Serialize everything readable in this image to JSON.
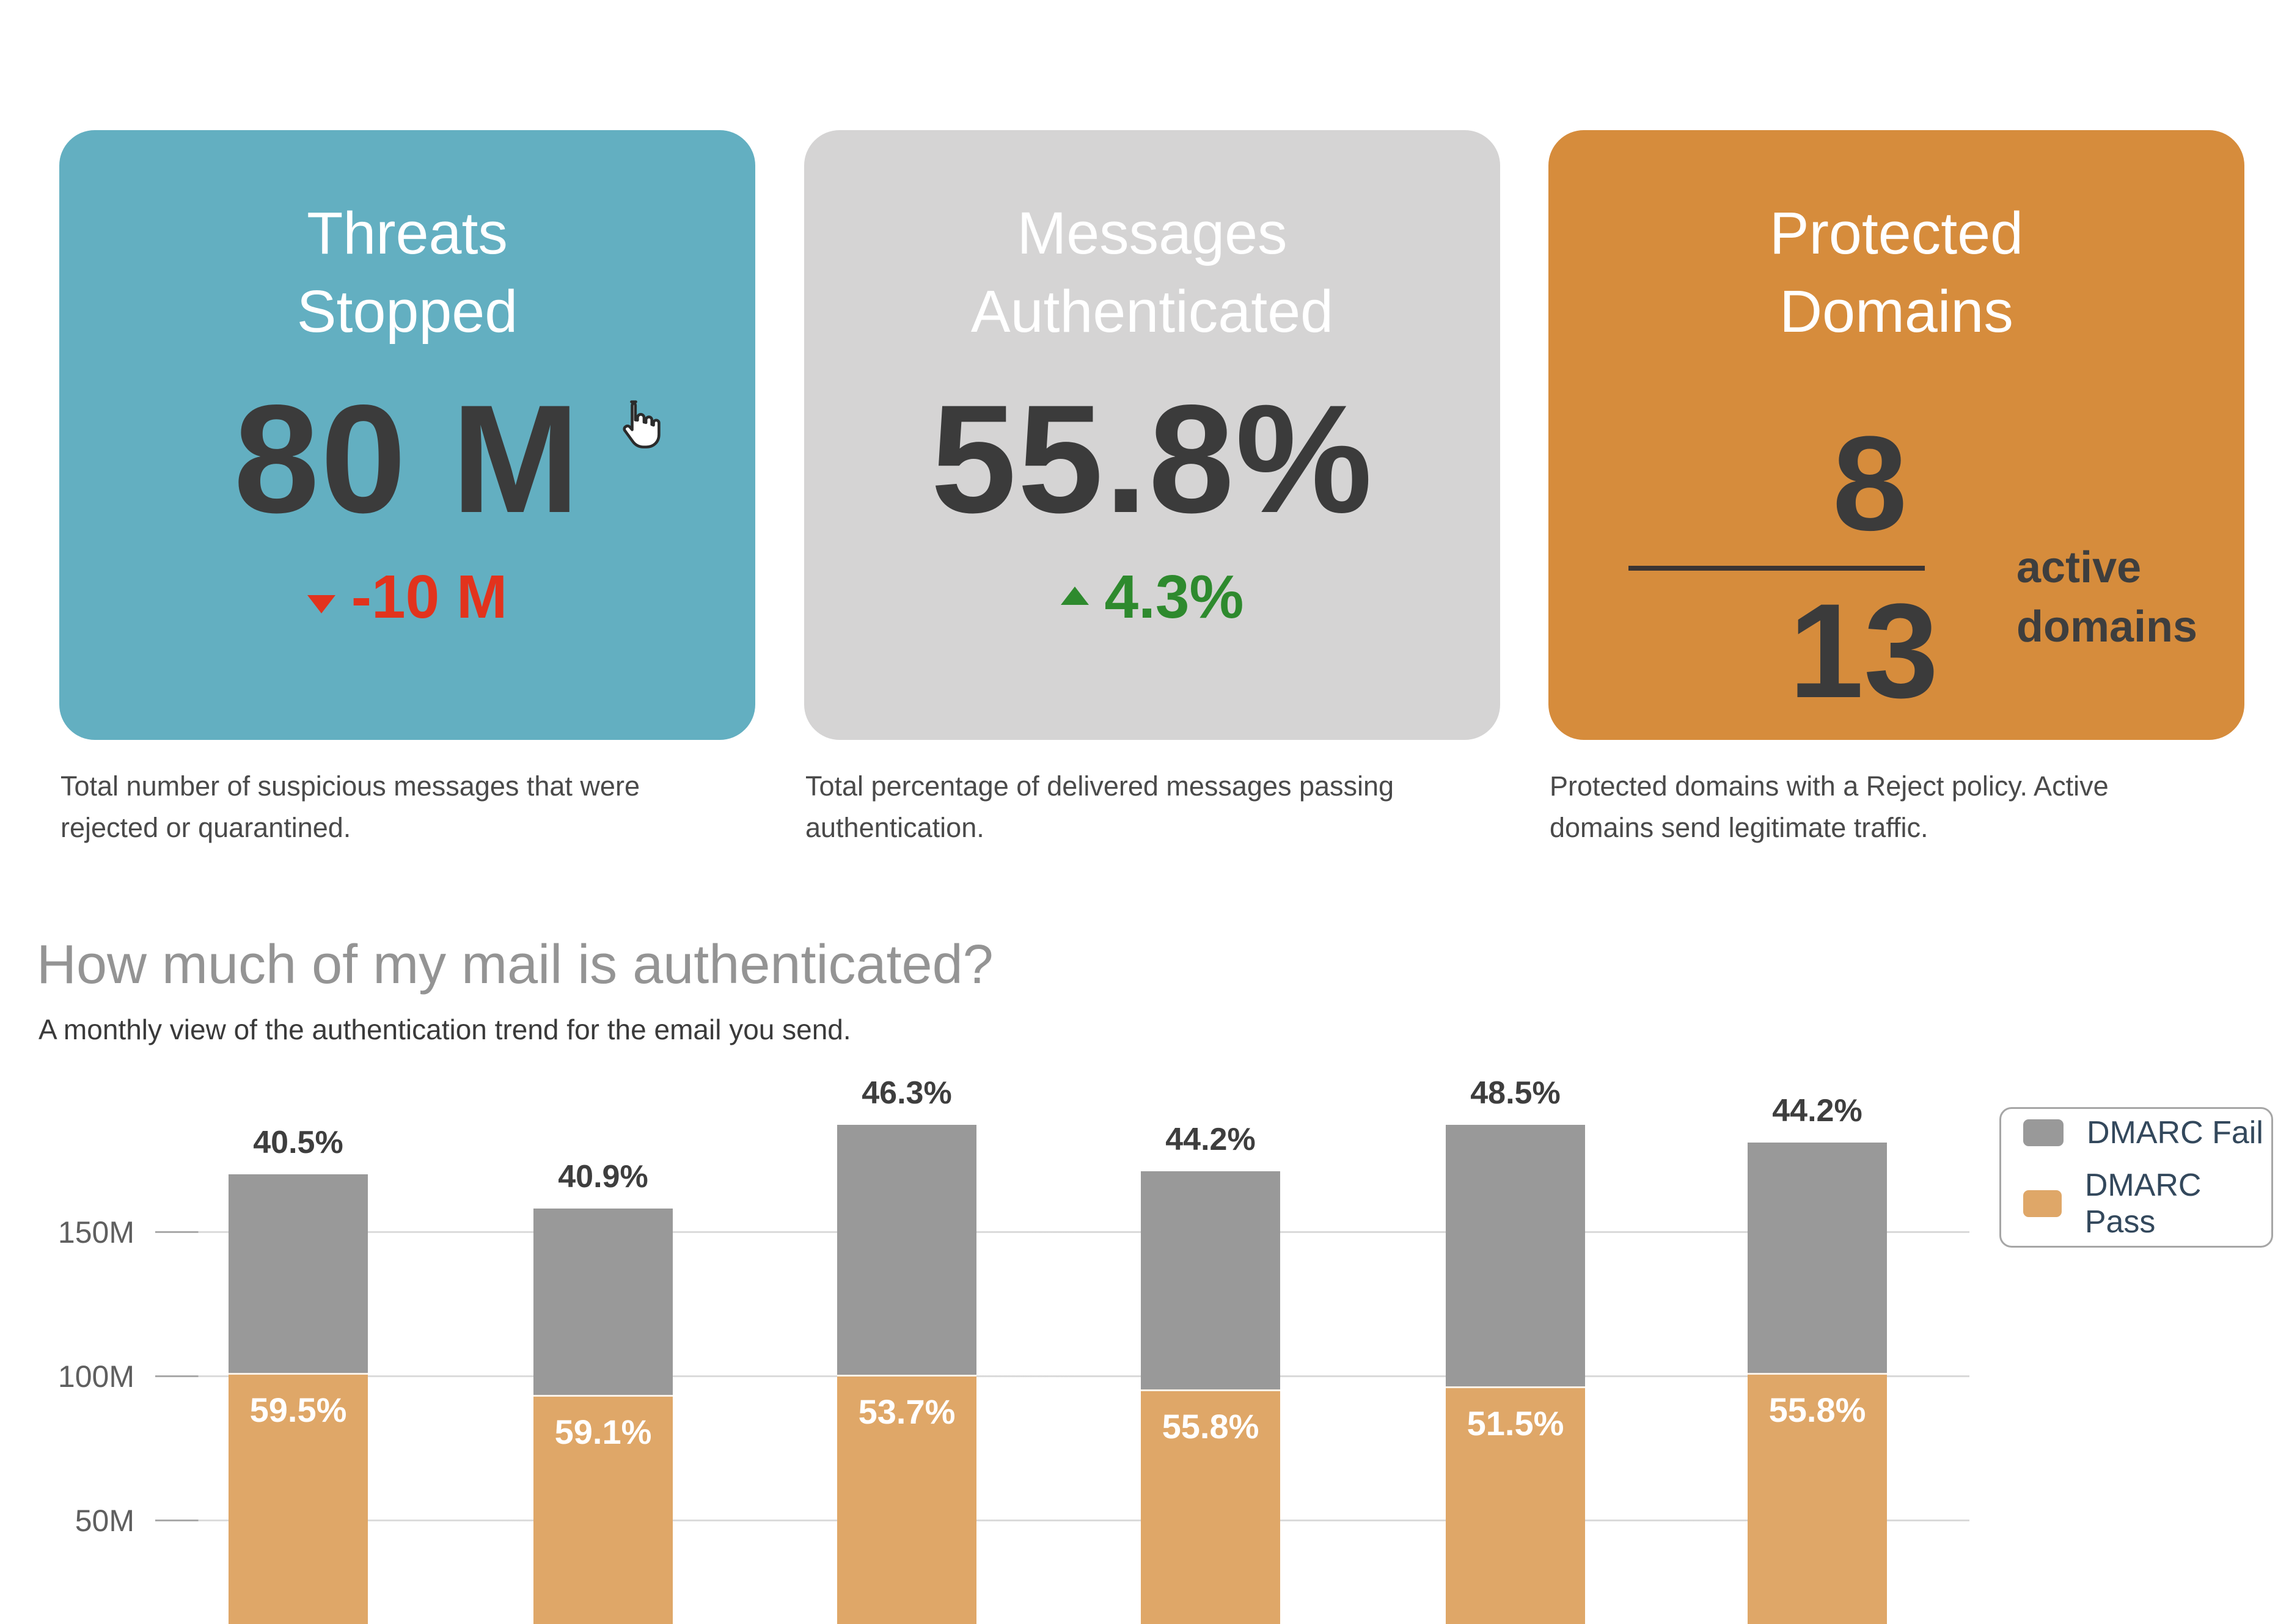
{
  "metrics_row": {
    "cards": [
      {
        "title_line1": "Threats",
        "title_line2": "Stopped",
        "value": "80 M",
        "delta_value": "-10 M",
        "delta_direction": "down",
        "bg_color": "#63AFC1",
        "delta_color": "#E2331D",
        "caption": "Total number of suspicious messages that were rejected or quarantined."
      },
      {
        "title_line1": "Messages",
        "title_line2": "Authenticated",
        "value": "55.8%",
        "delta_value": "4.3%",
        "delta_direction": "up",
        "bg_color": "#D5D4D4",
        "delta_color": "#2E8A2E",
        "caption": "Total percentage of delivered messages passing authentication."
      },
      {
        "title_line1": "Protected",
        "title_line2": "Domains",
        "numerator": "8",
        "denominator": "13",
        "side_label_line1": "active",
        "side_label_line2": "domains",
        "bg_color": "#D68C3C",
        "caption": "Protected domains with a Reject policy. Active domains send legitimate traffic."
      }
    ]
  },
  "section_header": {
    "title": "How much of my mail is authenticated?",
    "subtitle": "A monthly view of the authentication trend for the email you send."
  },
  "chart_data": {
    "type": "bar",
    "stacked": true,
    "title": "How much of my mail is authenticated?",
    "x_axis_labels_visible": false,
    "categories": [
      "",
      "",
      "",
      "",
      "",
      ""
    ],
    "y_ticks": [
      {
        "label": "150M",
        "value": 150
      },
      {
        "label": "100M",
        "value": 100
      },
      {
        "label": "50M",
        "value": 50
      }
    ],
    "ylim": [
      0,
      200
    ],
    "grid": true,
    "legend_position": "top-right",
    "series": [
      {
        "name": "DMARC Pass",
        "color": "#DFA768",
        "pct": [
          59.5,
          59.1,
          53.7,
          55.8,
          51.5,
          55.8
        ],
        "values_m_est": [
          101.1,
          93.4,
          100.4,
          95.4,
          96.3,
          101.0
        ]
      },
      {
        "name": "DMARC Fail",
        "color": "#999999",
        "pct": [
          40.5,
          40.9,
          46.3,
          44.2,
          48.5,
          44.2
        ],
        "values_m_est": [
          68.9,
          64.6,
          86.6,
          75.6,
          90.7,
          80.0
        ]
      }
    ],
    "bar_totals_m_est": [
      170,
      158,
      187,
      171,
      187,
      181
    ],
    "legend": [
      {
        "label": "DMARC Fail",
        "color": "#999999"
      },
      {
        "label": "DMARC Pass",
        "color": "#DFA768"
      }
    ]
  },
  "cursor": {
    "type": "hand-pointer"
  }
}
